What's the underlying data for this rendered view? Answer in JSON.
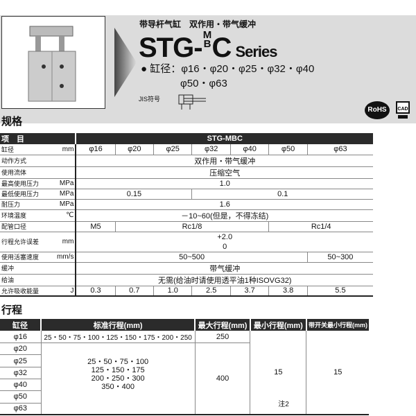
{
  "header": {
    "subtitle": "带导杆气缸　双作用・带气缓冲",
    "model_prefix": "STG-",
    "model_top": "M",
    "model_bottom": "B",
    "model_suffix": "C",
    "series": "Series",
    "bore_label": "● 缸径：",
    "bore_line1": "φ16・φ20・φ25・φ32・φ40",
    "bore_line2": "φ50・φ63",
    "jis_label": "JIS符号",
    "rohs": "RoHS",
    "cad": "CAD"
  },
  "spec": {
    "title": "规格",
    "head_item": "项　目",
    "head_model": "STG-MBC",
    "bore_label": "缸径",
    "bore_unit": "mm",
    "bores": [
      "φ16",
      "φ20",
      "φ25",
      "φ32",
      "φ40",
      "φ50",
      "φ63"
    ],
    "rows": [
      {
        "label": "动作方式",
        "unit": "",
        "value": "双作用・带气缓冲"
      },
      {
        "label": "使用流体",
        "unit": "",
        "value": "压缩空气"
      },
      {
        "label": "最高使用压力",
        "unit": "MPa",
        "value": "1.0"
      },
      {
        "label": "最低使用压力",
        "unit": "MPa",
        "values": [
          "0.15",
          "0.1"
        ]
      },
      {
        "label": "耐压力",
        "unit": "MPa",
        "value": "1.6"
      },
      {
        "label": "环境温度",
        "unit": "℃",
        "value": "－10~60(但是，不得冻结)"
      },
      {
        "label": "配管口径",
        "unit": "",
        "values": [
          "M5",
          "Rc1/8",
          "Rc1/4"
        ]
      },
      {
        "label": "行程允许误差",
        "unit": "mm",
        "value_top": "+2.0",
        "value_bottom": "0"
      },
      {
        "label": "使用活塞速度",
        "unit": "mm/s",
        "values": [
          "50~500",
          "50~300"
        ]
      },
      {
        "label": "缓冲",
        "unit": "",
        "value": "带气缓冲"
      },
      {
        "label": "给油",
        "unit": "",
        "value": "无需(给油时请使用透平油1种ISOVG32)"
      },
      {
        "label": "允许吸收能量",
        "unit": "J",
        "values": [
          "0.3",
          "0.7",
          "1.0",
          "2.5",
          "3.7",
          "3.8",
          "5.5"
        ]
      }
    ]
  },
  "stroke": {
    "title": "行程",
    "headers": [
      "缸径",
      "标准行程(mm)",
      "最大行程(mm)",
      "最小行程(mm)",
      "带开关最小行程(mm)"
    ],
    "bores": [
      "φ16",
      "φ20",
      "φ25",
      "φ32",
      "φ40",
      "φ50",
      "φ63"
    ],
    "std_16": "25・50・75・100・125・150・175・200・250",
    "max_16": "250",
    "std_other": [
      "25・50・75・100",
      "125・150・175",
      "200・250・300",
      "350・400"
    ],
    "max_other": "400",
    "min": "15",
    "note": "注2",
    "switch_min": "15"
  }
}
